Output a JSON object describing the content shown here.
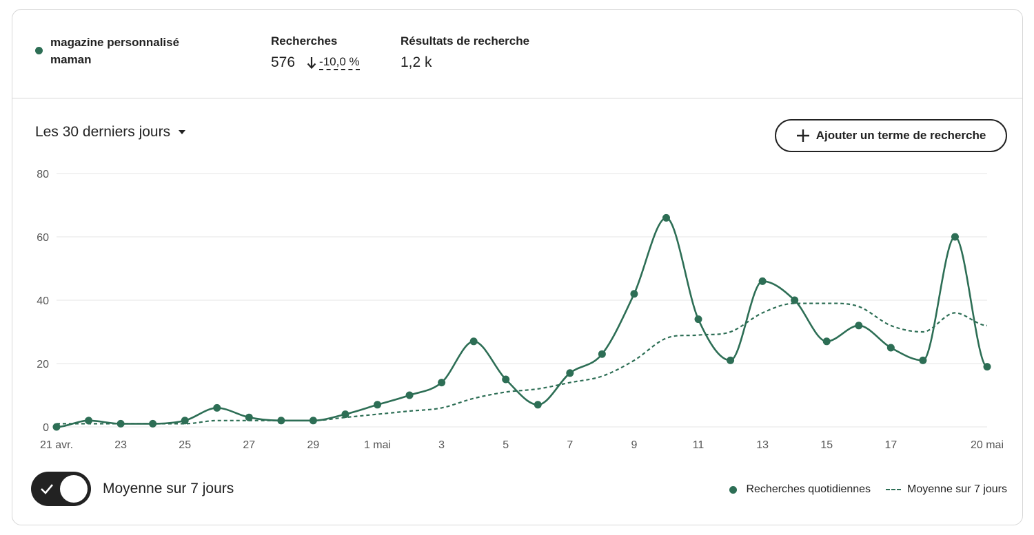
{
  "header": {
    "term": "magazine personnalisé maman",
    "searches_label": "Recherches",
    "searches_value": "576",
    "searches_change": "-10,0 %",
    "results_label": "Résultats de recherche",
    "results_value": "1,2 k"
  },
  "controls": {
    "range": "Les 30 derniers jours",
    "add_button": "Ajouter un terme de recherche",
    "toggle_label": "Moyenne sur 7 jours",
    "toggle_on": true
  },
  "legend": {
    "daily": "Recherches quotidiennes",
    "average": "Moyenne sur 7 jours"
  },
  "colors": {
    "series": "#2d6e55",
    "grid": "#e5e5e5",
    "axis_text": "#555555"
  },
  "chart_data": {
    "type": "line",
    "x": [
      "21 avr.",
      "22",
      "23",
      "24",
      "25",
      "26",
      "27",
      "28",
      "29",
      "30",
      "1 mai",
      "2",
      "3",
      "4",
      "5",
      "6",
      "7",
      "8",
      "9",
      "10",
      "11",
      "12",
      "13",
      "14",
      "15",
      "16",
      "17",
      "18",
      "19",
      "20 mai"
    ],
    "x_tick_labels": [
      "21 avr.",
      "23",
      "25",
      "27",
      "29",
      "1 mai",
      "3",
      "5",
      "7",
      "9",
      "11",
      "13",
      "15",
      "17",
      "20 mai"
    ],
    "x_tick_indices": [
      0,
      2,
      4,
      6,
      8,
      10,
      12,
      14,
      16,
      18,
      20,
      22,
      24,
      26,
      29
    ],
    "series": [
      {
        "name": "Recherches quotidiennes",
        "style": "solid-markers",
        "values": [
          0,
          2,
          1,
          1,
          2,
          6,
          3,
          2,
          2,
          4,
          7,
          10,
          14,
          27,
          15,
          7,
          17,
          23,
          42,
          66,
          34,
          21,
          46,
          40,
          27,
          32,
          25,
          21,
          60,
          19
        ]
      },
      {
        "name": "Moyenne sur 7 jours",
        "style": "dashed",
        "values": [
          1,
          1,
          1,
          1,
          1,
          2,
          2,
          2,
          2,
          3,
          4,
          5,
          6,
          9,
          11,
          12,
          14,
          16,
          21,
          28,
          29,
          30,
          36,
          39,
          39,
          38,
          32,
          30,
          36,
          32
        ]
      }
    ],
    "y_ticks": [
      0,
      20,
      40,
      60,
      80
    ],
    "ylim": [
      0,
      80
    ],
    "grid": true,
    "legend_position": "bottom-right"
  }
}
